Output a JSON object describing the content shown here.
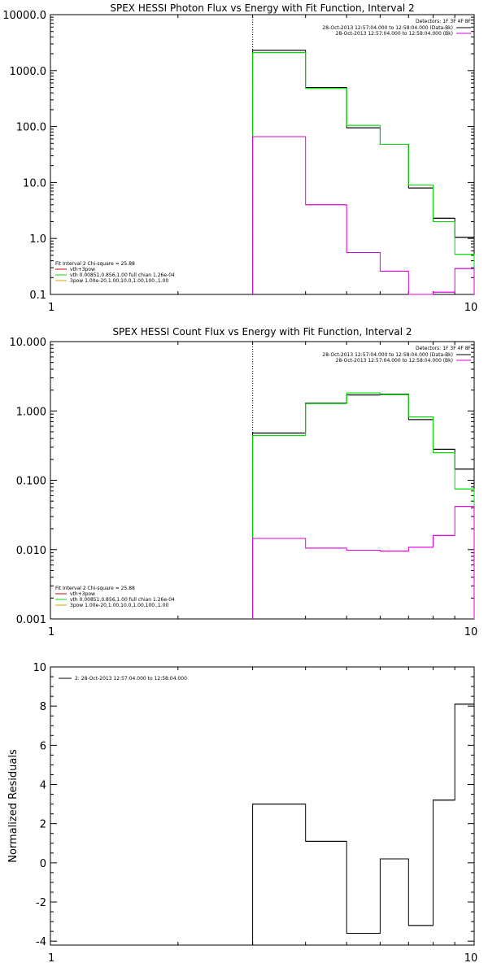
{
  "colors": {
    "background": "#ffffff",
    "axes": "#000000",
    "data": "#000000",
    "fit_total": "#cc0000",
    "vth": "#00dd00",
    "bpow": "#dd00dd",
    "bpow_legend": "#d4aa00"
  },
  "chart_data": [
    {
      "type": "line",
      "title": "SPEX HESSI Photon Flux vs Energy with Fit Function, Interval 2",
      "xscale": "log",
      "yscale": "log",
      "xlim": [
        1,
        10
      ],
      "ylim": [
        0.1,
        10000
      ],
      "xticks": [
        {
          "v": 1,
          "label": "1"
        },
        {
          "v": 10,
          "label": "10"
        }
      ],
      "yticks": [
        {
          "v": 0.1,
          "label": "0.1"
        },
        {
          "v": 1,
          "label": "1.0"
        },
        {
          "v": 10,
          "label": "10.0"
        },
        {
          "v": 100,
          "label": "100.0"
        },
        {
          "v": 1000,
          "label": "1000.0"
        },
        {
          "v": 10000,
          "label": "10000.0"
        }
      ],
      "grid": false,
      "vline": 3.0,
      "legend_topright": {
        "header": "Detectors: 1F 3F 4F 8F",
        "entries": [
          {
            "label": "28-Oct-2013 12:57:04.000 to 12:58:04.000 (Data-Bk)",
            "color_key": "data"
          },
          {
            "label": "28-Oct-2013 12:57:04.000 to 12:58:04.000 (Bk)",
            "color_key": "bpow"
          }
        ]
      },
      "legend_bottomleft": {
        "header": "Fit Interval 2   Chi-square = 25.88",
        "entries": [
          {
            "label": "vth+3pow",
            "color_key": "fit_total"
          },
          {
            "label": "vth 0.00851,0.856,1.00   full chian 1.26e-04",
            "color_key": "vth"
          },
          {
            "label": "3pow 1.00e-20,1.00,10.0,1.00,100.,1.00",
            "color_key": "bpow_legend"
          }
        ]
      },
      "bin_edges": [
        3.0,
        4.0,
        5.0,
        6.0,
        7.0,
        8.0,
        9.0,
        10.0
      ],
      "series": [
        {
          "name": "Data-Bk",
          "color_key": "data",
          "values": [
            2300,
            500,
            95,
            48,
            8.0,
            2.3,
            1.05
          ]
        },
        {
          "name": "vth",
          "color_key": "vth",
          "values": [
            2100,
            480,
            105,
            48,
            9.0,
            2.0,
            0.52
          ]
        },
        {
          "name": "Bk",
          "color_key": "bpow",
          "values": [
            66,
            4.0,
            0.56,
            0.26,
            0.1,
            0.11,
            0.29
          ]
        }
      ]
    },
    {
      "type": "line",
      "title": "SPEX HESSI Count Flux vs Energy with Fit Function, Interval 2",
      "xscale": "log",
      "yscale": "log",
      "xlim": [
        1,
        10
      ],
      "ylim": [
        0.001,
        10
      ],
      "xticks": [
        {
          "v": 1,
          "label": "1"
        },
        {
          "v": 10,
          "label": "10"
        }
      ],
      "yticks": [
        {
          "v": 0.001,
          "label": "0.001"
        },
        {
          "v": 0.01,
          "label": "0.010"
        },
        {
          "v": 0.1,
          "label": "0.100"
        },
        {
          "v": 1,
          "label": "1.000"
        },
        {
          "v": 10,
          "label": "10.000"
        }
      ],
      "grid": false,
      "vline": 3.0,
      "legend_topright": {
        "header": "Detectors: 1F 3F 4F 8F",
        "entries": [
          {
            "label": "28-Oct-2013 12:57:04.000 to 12:58:04.000 (Data-Bk)",
            "color_key": "data"
          },
          {
            "label": "28-Oct-2013 12:57:04.000 to 12:58:04.000 (Bk)",
            "color_key": "bpow"
          }
        ]
      },
      "legend_bottomleft": {
        "header": "Fit Interval 2   Chi-square = 25.88",
        "entries": [
          {
            "label": "vth+3pow",
            "color_key": "fit_total"
          },
          {
            "label": "vth 0.00851,0.856,1.00   full chian 1.26e-04",
            "color_key": "vth"
          },
          {
            "label": "3pow 1.00e-20,1.00,10.0,1.00,100.,1.00",
            "color_key": "bpow_legend"
          }
        ]
      },
      "bin_edges": [
        3.0,
        4.0,
        5.0,
        6.0,
        7.0,
        8.0,
        9.0,
        10.0
      ],
      "series": [
        {
          "name": "Data-Bk",
          "color_key": "data",
          "values": [
            0.48,
            1.3,
            1.7,
            1.75,
            0.75,
            0.28,
            0.145
          ]
        },
        {
          "name": "vth",
          "color_key": "vth",
          "values": [
            0.44,
            1.28,
            1.82,
            1.72,
            0.82,
            0.25,
            0.075
          ]
        },
        {
          "name": "Bk",
          "color_key": "bpow",
          "values": [
            0.0145,
            0.0105,
            0.0098,
            0.0095,
            0.0108,
            0.016,
            0.042
          ]
        }
      ]
    },
    {
      "type": "line",
      "title": "",
      "xscale": "log",
      "yscale": "linear",
      "xlim": [
        1,
        10
      ],
      "ylim": [
        -4.2,
        10
      ],
      "ylabel": "Normalized Residuals",
      "xticks": [
        {
          "v": 1,
          "label": "1"
        },
        {
          "v": 10,
          "label": "10"
        }
      ],
      "yticks": [
        {
          "v": -4,
          "label": "-4"
        },
        {
          "v": -2,
          "label": "-2"
        },
        {
          "v": 0,
          "label": "0"
        },
        {
          "v": 2,
          "label": "2"
        },
        {
          "v": 4,
          "label": "4"
        },
        {
          "v": 6,
          "label": "6"
        },
        {
          "v": 8,
          "label": "8"
        },
        {
          "v": 10,
          "label": "10"
        }
      ],
      "grid": false,
      "legend_topleft": {
        "entries": [
          {
            "label": "2: 28-Oct-2013 12:57:04.000 to 12:58:04.000",
            "color_key": "data"
          }
        ]
      },
      "bin_edges": [
        3.0,
        4.0,
        5.0,
        6.0,
        7.0,
        8.0,
        9.0,
        10.0
      ],
      "series": [
        {
          "name": "residuals",
          "color_key": "data",
          "values": [
            3.0,
            1.1,
            -3.6,
            0.2,
            -3.2,
            3.2,
            8.1
          ]
        }
      ]
    }
  ]
}
